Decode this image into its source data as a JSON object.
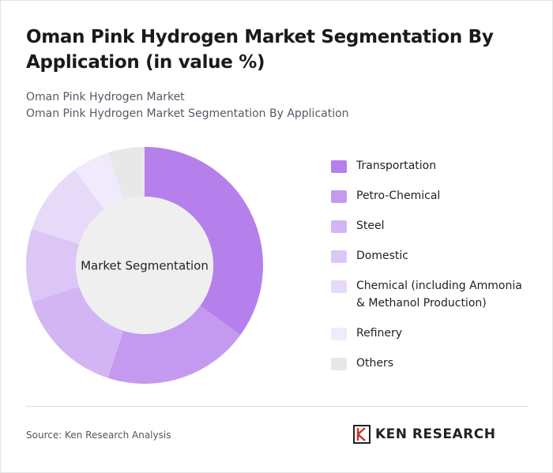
{
  "chart_data": {
    "type": "donut",
    "title": "Oman Pink Hydrogen Market Segmentation By Application (in value %)",
    "subtitle": [
      "Oman Pink Hydrogen Market",
      "Oman Pink Hydrogen Market Segmentation By Application"
    ],
    "center_label": "Market Segmentation",
    "categories": [
      "Transportation",
      "Petro-Chemical",
      "Steel",
      "Domestic",
      "Chemical (including Ammonia & Methanol Production)",
      "Refinery",
      "Others"
    ],
    "values": [
      35,
      20,
      15,
      10,
      10,
      5,
      5
    ],
    "colors": [
      "#b57fec",
      "#c49af0",
      "#d3b5f4",
      "#dcc6f6",
      "#e7daf9",
      "#f1e9fc",
      "#e8e8e8"
    ],
    "source": "Source: Ken Research Analysis",
    "logo_text": "KEN RESEARCH"
  }
}
